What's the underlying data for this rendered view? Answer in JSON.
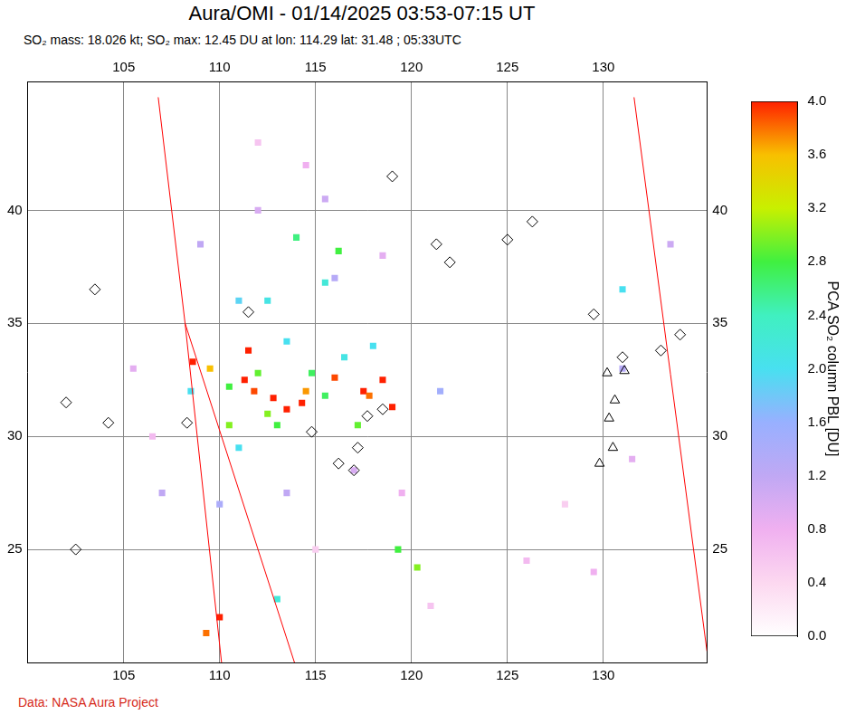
{
  "chart_data": {
    "type": "scatter",
    "title": "Aura/OMI - 01/14/2025 03:53-07:15 UT",
    "subtitle": "SO₂ mass: 18.026 kt; SO₂ max: 12.45 DU at lon: 114.29 lat: 31.48 ; 05:33UTC",
    "source": "Data: NASA Aura Project",
    "xlim": [
      100,
      135.4
    ],
    "xticks": [
      105,
      110,
      115,
      120,
      125,
      130
    ],
    "ylim": [
      20,
      45.7
    ],
    "yticks": [
      25,
      30,
      35,
      40
    ],
    "grid": true,
    "pixels": {
      "lon": [
        111.3,
        111.8,
        112.8,
        113.5,
        114.29,
        117.5,
        117.8,
        118.5,
        108.6,
        109.5,
        111.5,
        114.5,
        110.0,
        109.3,
        116.0,
        119.0,
        110.5,
        112.0,
        113.0,
        115.5,
        116.2,
        114.0,
        110.5,
        112.5,
        114.8,
        117.2,
        119.3,
        120.3,
        108.5,
        112.5,
        113.5,
        115.5,
        111.0,
        116.5,
        118.0,
        113.0,
        131.0,
        111.0,
        109.0,
        112.0,
        114.5,
        116.0,
        117.0,
        119.5,
        121.0,
        126.0,
        128.0,
        131.5,
        133.5,
        105.5,
        107.0,
        106.5,
        115.0,
        110.0,
        113.5,
        118.5,
        115.5,
        112.0,
        121.5,
        131.0,
        129.5
      ],
      "lat": [
        32.5,
        32.0,
        31.7,
        31.2,
        31.48,
        32.0,
        31.8,
        32.5,
        33.3,
        33.0,
        33.8,
        32.0,
        22.0,
        21.3,
        32.6,
        31.3,
        32.2,
        32.8,
        30.5,
        31.8,
        38.2,
        38.8,
        30.5,
        31.0,
        32.8,
        30.5,
        25.0,
        24.2,
        32.0,
        36.0,
        34.2,
        36.8,
        36.0,
        33.5,
        34.0,
        22.8,
        36.5,
        29.5,
        38.5,
        40.0,
        42.0,
        37.0,
        28.5,
        27.5,
        22.5,
        24.5,
        27.0,
        29.0,
        38.5,
        33.0,
        27.5,
        30.0,
        25.0,
        27.0,
        27.5,
        38.0,
        40.5,
        43.0,
        32.0,
        33.0,
        24.0
      ],
      "values": [
        4.0,
        3.9,
        4.0,
        4.2,
        12.45,
        4.0,
        3.8,
        4.0,
        4.0,
        3.6,
        4.0,
        3.7,
        4.0,
        3.8,
        3.9,
        4.0,
        2.8,
        2.9,
        2.8,
        2.7,
        2.8,
        2.6,
        3.0,
        3.0,
        2.7,
        2.9,
        2.8,
        3.0,
        2.0,
        2.1,
        2.0,
        2.2,
        1.9,
        2.1,
        2.0,
        2.2,
        2.0,
        2.0,
        1.2,
        1.0,
        0.8,
        1.3,
        1.0,
        0.8,
        0.6,
        0.7,
        0.5,
        0.9,
        1.1,
        0.9,
        1.2,
        0.7,
        0.5,
        1.4,
        1.2,
        0.9,
        1.1,
        0.6,
        1.5,
        1.3,
        0.8
      ]
    },
    "markers": [
      {
        "marker": "diamond",
        "lon": [
          103.5,
          102.0,
          104.2,
          102.5,
          111.5,
          108.3,
          114.8,
          117.7,
          118.5,
          117.2,
          116.2,
          117.0,
          119.0,
          121.3,
          122.0,
          126.3,
          125.0,
          129.5,
          131.0,
          133.0,
          134.0
        ],
        "lat": [
          36.5,
          31.5,
          30.6,
          25.0,
          35.5,
          30.6,
          30.2,
          30.9,
          31.2,
          29.5,
          28.8,
          28.5,
          41.5,
          38.5,
          37.7,
          39.5,
          38.7,
          35.4,
          33.5,
          33.8,
          34.5
        ]
      },
      {
        "marker": "triangle",
        "lon": [
          130.6,
          130.3,
          130.5,
          129.8,
          130.2,
          131.1
        ],
        "lat": [
          31.6,
          30.8,
          29.5,
          28.8,
          32.8,
          32.9
        ]
      }
    ],
    "swath_edges": [
      {
        "color": "#ff0000",
        "lon": [
          106.8,
          108.2,
          110.1
        ],
        "lat": [
          45,
          35,
          20
        ]
      },
      {
        "color": "#ff0000",
        "lon": [
          108.2,
          113.9
        ],
        "lat": [
          35,
          20
        ]
      },
      {
        "color": "#ff0000",
        "lon": [
          131.6,
          135.4
        ],
        "lat": [
          45,
          20.5
        ]
      }
    ],
    "colorbar": {
      "title": "PCA SO₂ column PBL [DU]",
      "lim": [
        0,
        4
      ],
      "ticks": [
        {
          "value": 0,
          "label": "0.0"
        },
        {
          "value": 0.4,
          "label": "0.4"
        },
        {
          "value": 0.8,
          "label": "0.8"
        },
        {
          "value": 1.2,
          "label": "1.2"
        },
        {
          "value": 1.6,
          "label": "1.6"
        },
        {
          "value": 2.0,
          "label": "2.0"
        },
        {
          "value": 2.4,
          "label": "2.4"
        },
        {
          "value": 2.8,
          "label": "2.8"
        },
        {
          "value": 3.2,
          "label": "3.2"
        },
        {
          "value": 3.6,
          "label": "3.6"
        },
        {
          "value": 4.0,
          "label": "4.0"
        }
      ],
      "stops": [
        0,
        0.4,
        0.8,
        1.2,
        1.6,
        2.0,
        2.4,
        2.8,
        3.2,
        3.6,
        4.0
      ],
      "colors": [
        "#ffffff",
        "#fcd8f0",
        "#f0b0f0",
        "#c0a8f4",
        "#98b0ff",
        "#48e0f0",
        "#40f0c0",
        "#40f040",
        "#c8f000",
        "#f8c000",
        "#ff2000"
      ]
    }
  }
}
